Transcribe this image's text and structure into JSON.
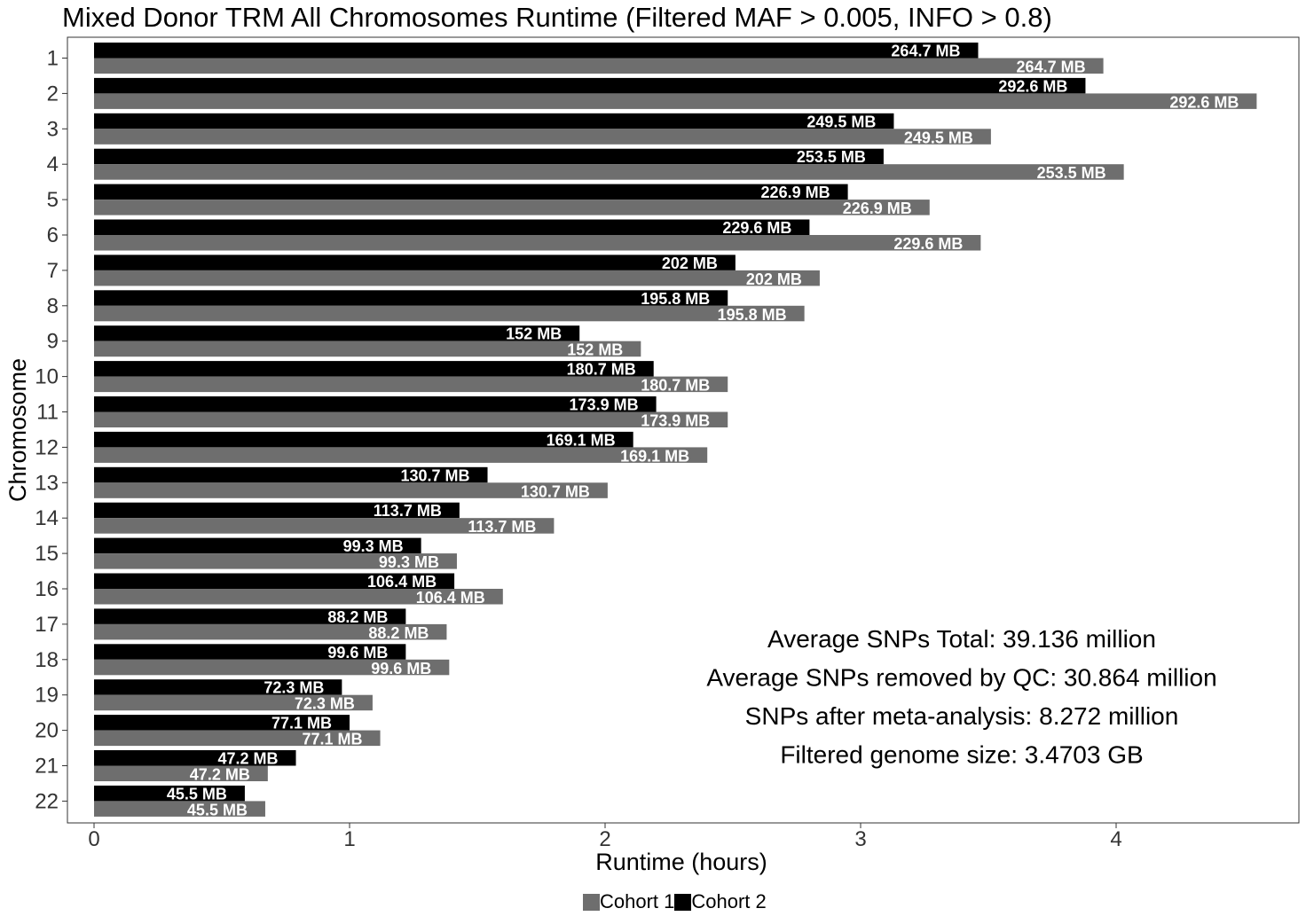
{
  "chart_data": {
    "type": "bar",
    "orientation": "horizontal",
    "title": "Mixed Donor TRM All Chromosomes Runtime (Filtered MAF > 0.005, INFO > 0.8)",
    "xlabel": "Runtime (hours)",
    "ylabel": "Chromosome",
    "xlim": [
      0,
      4.7
    ],
    "x_ticks": [
      "0",
      "1",
      "2",
      "3",
      "4"
    ],
    "categories": [
      "1",
      "2",
      "3",
      "4",
      "5",
      "6",
      "7",
      "8",
      "9",
      "10",
      "11",
      "12",
      "13",
      "14",
      "15",
      "16",
      "17",
      "18",
      "19",
      "20",
      "21",
      "22"
    ],
    "bar_labels": [
      "264.7 MB",
      "292.6 MB",
      "249.5 MB",
      "253.5 MB",
      "226.9 MB",
      "229.6 MB",
      "202 MB",
      "195.8 MB",
      "152 MB",
      "180.7 MB",
      "173.9 MB",
      "169.1 MB",
      "130.7 MB",
      "113.7 MB",
      "99.3 MB",
      "106.4 MB",
      "88.2 MB",
      "99.6 MB",
      "72.3 MB",
      "77.1 MB",
      "47.2 MB",
      "45.5 MB"
    ],
    "series": [
      {
        "name": "Cohort 2",
        "color": "#000000",
        "values": [
          3.46,
          3.88,
          3.13,
          3.09,
          2.95,
          2.8,
          2.51,
          2.48,
          1.9,
          2.19,
          2.2,
          2.11,
          1.54,
          1.43,
          1.28,
          1.41,
          1.22,
          1.22,
          0.97,
          1.0,
          0.79,
          0.59
        ]
      },
      {
        "name": "Cohort 1",
        "color": "#6e6e6e",
        "values": [
          3.95,
          4.55,
          3.51,
          4.03,
          3.27,
          3.47,
          2.84,
          2.78,
          2.14,
          2.48,
          2.48,
          2.4,
          2.01,
          1.8,
          1.42,
          1.6,
          1.38,
          1.39,
          1.09,
          1.12,
          0.68,
          0.67
        ]
      }
    ],
    "legend": {
      "position": "bottom",
      "items": [
        {
          "name": "Cohort 1",
          "color": "#6e6e6e"
        },
        {
          "name": "Cohort 2",
          "color": "#000000"
        }
      ]
    },
    "annotations": [
      "Average SNPs Total: 39.136 million",
      "Average SNPs removed by QC: 30.864 million",
      "SNPs after meta-analysis: 8.272 million",
      "Filtered genome size: 3.4703 GB"
    ],
    "grid": false
  }
}
